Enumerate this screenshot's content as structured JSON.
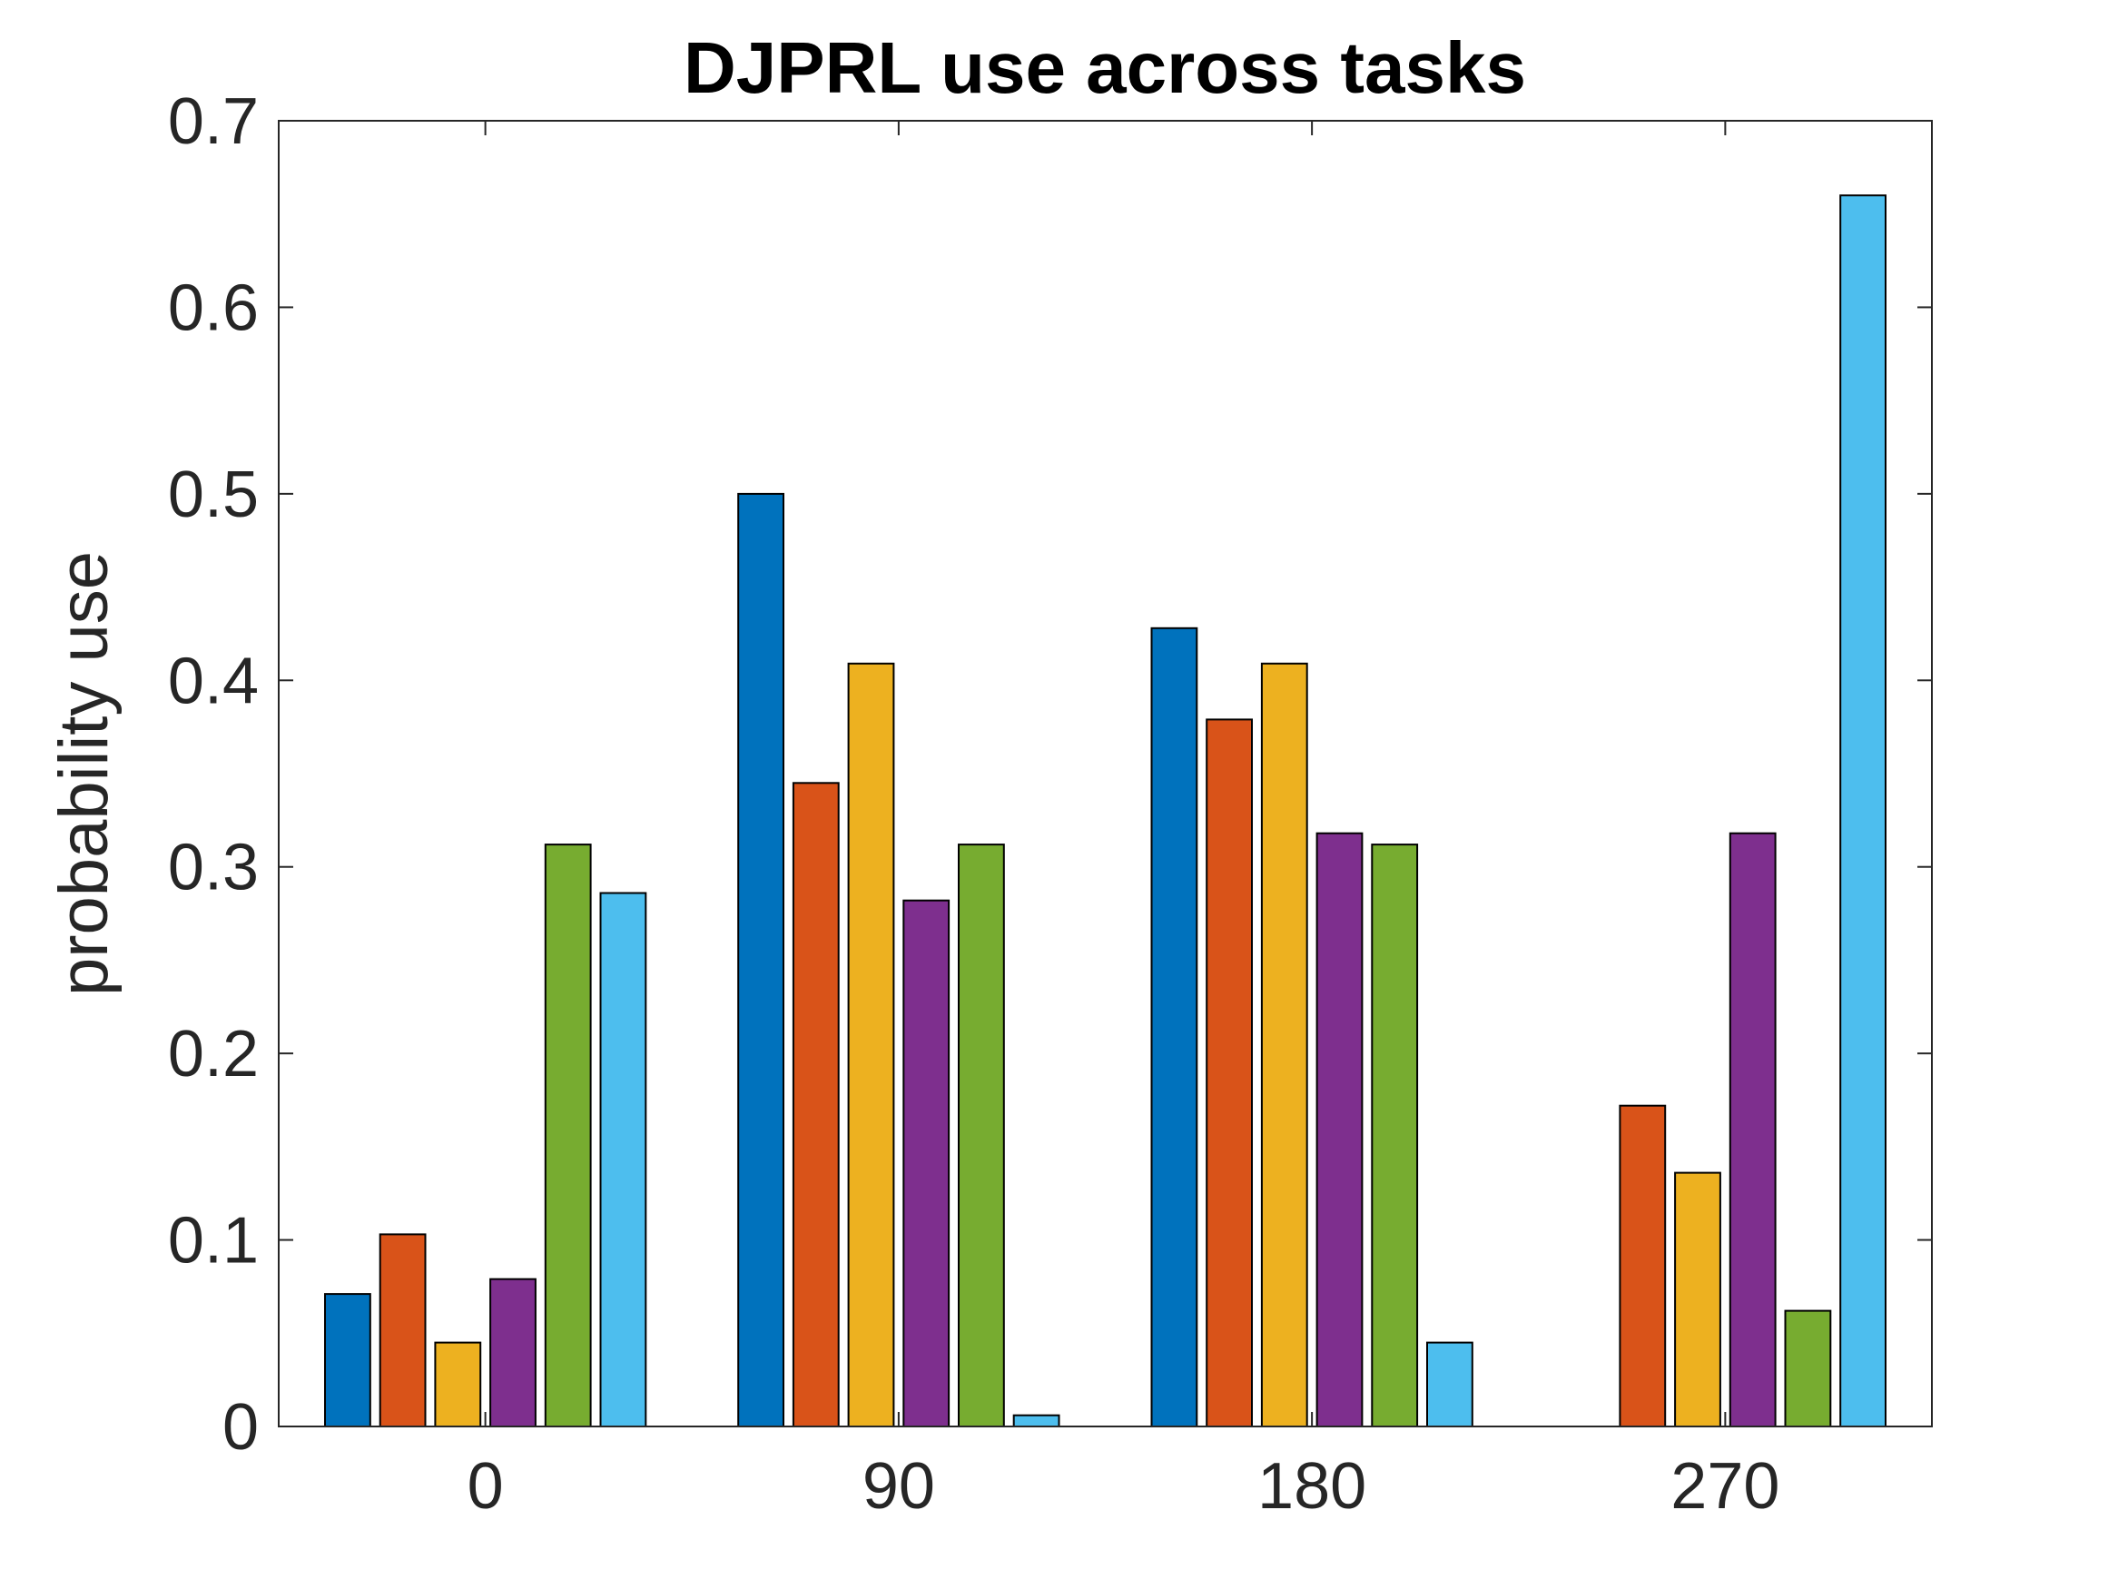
{
  "chart_data": {
    "type": "bar",
    "title": "DJPRL use across tasks",
    "xlabel": "",
    "ylabel": "probability use",
    "categories": [
      "0",
      "90",
      "180",
      "270"
    ],
    "ylim": [
      0,
      0.7
    ],
    "yticks": [
      0,
      0.1,
      0.2,
      0.3,
      0.4,
      0.5,
      0.6,
      0.7
    ],
    "ytick_labels": [
      "0",
      "0.1",
      "0.2",
      "0.3",
      "0.4",
      "0.5",
      "0.6",
      "0.7"
    ],
    "grid": false,
    "series": [
      {
        "color": "#0072BD",
        "values": [
          0.071,
          0.5,
          0.428,
          0.0
        ]
      },
      {
        "color": "#D95319",
        "values": [
          0.103,
          0.345,
          0.379,
          0.172
        ]
      },
      {
        "color": "#EDB120",
        "values": [
          0.045,
          0.409,
          0.409,
          0.136
        ]
      },
      {
        "color": "#7E2F8E",
        "values": [
          0.079,
          0.282,
          0.318,
          0.318
        ]
      },
      {
        "color": "#77AC30",
        "values": [
          0.312,
          0.312,
          0.312,
          0.062
        ]
      },
      {
        "color": "#4DBEEE",
        "values": [
          0.286,
          0.006,
          0.045,
          0.66
        ]
      }
    ]
  }
}
